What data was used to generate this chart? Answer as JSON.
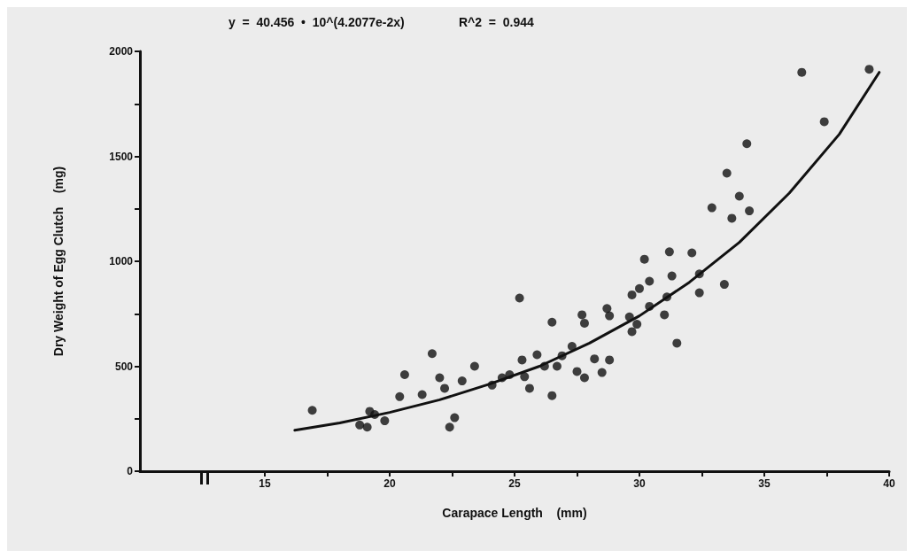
{
  "chart_data": {
    "type": "scatter",
    "xlabel": "Carapace Length    (mm)",
    "ylabel": "Dry Weight of Egg Clutch    (mg)",
    "annotations": [
      "y  =  40.456  •  10^(4.2077e-2x)",
      "R^2  =  0.944"
    ],
    "xlim": [
      10,
      40
    ],
    "xticks": [
      15,
      {
        "value": 17.5,
        "label": null
      },
      20,
      {
        "value": 22.5,
        "label": null
      },
      25,
      {
        "value": 27.5,
        "label": null
      },
      30,
      {
        "value": 32.5,
        "label": null
      },
      35,
      {
        "value": 37.5,
        "label": null
      },
      40
    ],
    "ylim": [
      0,
      2000
    ],
    "yticks": [
      0,
      {
        "value": 250,
        "label": null
      },
      500,
      {
        "value": 750,
        "label": null
      },
      1000,
      {
        "value": 1250,
        "label": null
      },
      1500,
      {
        "value": 1750,
        "label": null
      },
      2000
    ],
    "grid": false,
    "marker": "circle",
    "series": [
      {
        "color": "#111111",
        "x": [
          16.9,
          18.8,
          19.1,
          19.2,
          19.4,
          19.8,
          20.4,
          20.6,
          21.3,
          21.7,
          22.0,
          22.2,
          22.4,
          22.6,
          22.9,
          23.4,
          24.1,
          24.5,
          24.8,
          25.2,
          25.3,
          25.4,
          25.6,
          25.9,
          26.2,
          26.5,
          26.5,
          26.7,
          26.9,
          27.3,
          27.5,
          27.7,
          27.8,
          27.8,
          28.2,
          28.5,
          28.7,
          28.8,
          28.8,
          29.6,
          29.7,
          29.7,
          29.9,
          30.0,
          30.2,
          30.4,
          30.4,
          31.0,
          31.1,
          31.2,
          31.3,
          31.5,
          32.1,
          32.4,
          32.4,
          32.9,
          33.4,
          33.5,
          33.7,
          34.0,
          34.3,
          34.4,
          36.5,
          37.4,
          39.2
        ],
        "values": [
          290,
          220,
          210,
          285,
          270,
          240,
          355,
          460,
          365,
          560,
          445,
          395,
          210,
          255,
          430,
          500,
          410,
          445,
          460,
          825,
          530,
          450,
          395,
          555,
          500,
          360,
          710,
          500,
          550,
          595,
          475,
          745,
          705,
          445,
          535,
          470,
          775,
          740,
          530,
          735,
          840,
          665,
          700,
          870,
          1010,
          785,
          905,
          745,
          830,
          1045,
          930,
          610,
          1040,
          940,
          850,
          1255,
          890,
          1420,
          1205,
          1310,
          1560,
          1240,
          1900,
          1665,
          1915
        ]
      },
      {
        "type": "line",
        "color": "#111111",
        "marker": "none",
        "line_style": "solid",
        "x": [
          16.2,
          18,
          20,
          22,
          24,
          26,
          28,
          30,
          32,
          34,
          36,
          38,
          39.6
        ],
        "values": [
          195,
          230,
          280,
          340,
          415,
          500,
          610,
          740,
          900,
          1090,
          1325,
          1605,
          1900
        ]
      }
    ]
  }
}
